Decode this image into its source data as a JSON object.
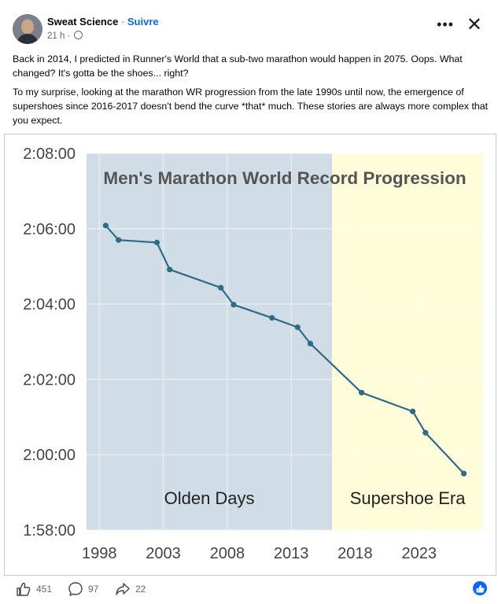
{
  "post": {
    "author": "Sweat Science",
    "separator": " · ",
    "follow_label": "Suivre",
    "timestamp": "21 h ·",
    "more_label": "•••",
    "close_label": "✕",
    "paragraph1": "Back in 2014, I predicted in Runner's World that a sub-two marathon would happen in 2075. Oops. What changed? It's gotta be the shoes... right?",
    "paragraph2": "To my surprise, looking at the marathon WR progression from the late 1990s until now, the emergence of supershoes since 2016-2017 doesn't bend the curve *that* much. These stories are always more complex that you expect."
  },
  "footer": {
    "likes": "451",
    "comments": "97",
    "shares": "22"
  },
  "colors": {
    "olden_band": "#d0dde6",
    "supershoe_band": "#fefcd9",
    "line": "#2e6b85",
    "title": "#555555",
    "accent": "#0866ff"
  },
  "chart_data": {
    "type": "line",
    "title": "Men's Marathon World Record Progression",
    "x_ticks": [
      "1998",
      "2003",
      "2008",
      "2013",
      "2018",
      "2023"
    ],
    "y_ticks": [
      "2:08:00",
      "2:06:00",
      "2:04:00",
      "2:02:00",
      "2:00:00",
      "1:58:00"
    ],
    "xlim": [
      1997.0,
      2028.0
    ],
    "ylim": [
      "1:58:00",
      "2:08:00"
    ],
    "regions": [
      {
        "label": "Olden Days",
        "from": 1997.0,
        "to": 2016.2
      },
      {
        "label": "Supershoe Era",
        "from": 2016.2,
        "to": 2028.0
      }
    ],
    "series": [
      {
        "x": [
          1998.5,
          1999.5,
          2002.5,
          2003.5,
          2007.5,
          2008.5,
          2011.5,
          2013.5,
          2014.5,
          2018.5,
          2022.5,
          2023.5,
          2026.5
        ],
        "y": [
          "2:06:05",
          "2:05:42",
          "2:05:38",
          "2:04:55",
          "2:04:26",
          "2:03:59",
          "2:03:38",
          "2:03:23",
          "2:02:57",
          "2:01:39",
          "2:01:09",
          "2:00:35",
          "1:59:30"
        ]
      }
    ],
    "grid": true
  }
}
